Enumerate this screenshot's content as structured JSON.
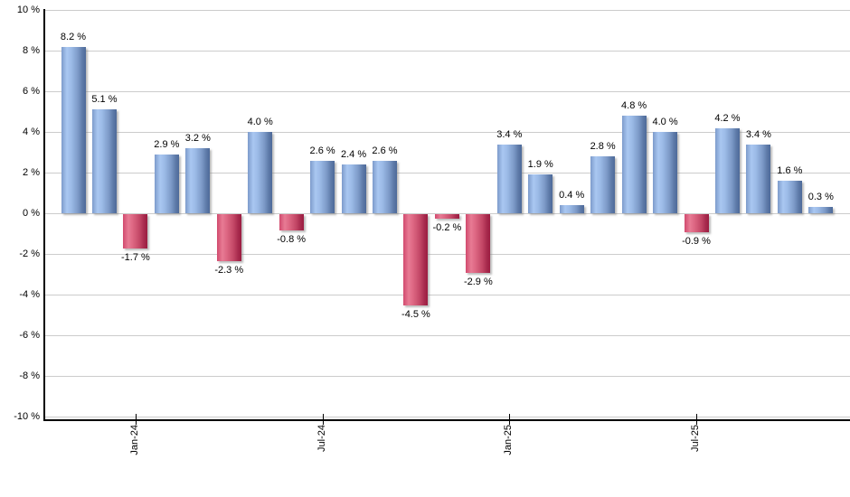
{
  "chart_data": {
    "type": "bar",
    "title": "",
    "unit": "%",
    "values": [
      8.2,
      5.1,
      -1.7,
      2.9,
      3.2,
      -2.3,
      4.0,
      -0.8,
      2.6,
      2.4,
      2.6,
      -4.5,
      -0.2,
      -2.9,
      3.4,
      1.9,
      0.4,
      2.8,
      4.8,
      4.0,
      -0.9,
      4.2,
      3.4,
      1.6,
      0.3
    ],
    "bar_labels": [
      "8.2 %",
      "5.1 %",
      "-1.7 %",
      "2.9 %",
      "3.2 %",
      "-2.3 %",
      "4.0 %",
      "-0.8 %",
      "2.6 %",
      "2.4 %",
      "2.6 %",
      "-4.5 %",
      "-0.2 %",
      "-2.9 %",
      "3.4 %",
      "1.9 %",
      "0.4 %",
      "2.8 %",
      "4.8 %",
      "4.0 %",
      "-0.9 %",
      "4.2 %",
      "3.4 %",
      "1.6 %",
      "0.3 %"
    ],
    "y_ticks": [
      10,
      8,
      6,
      4,
      2,
      0,
      -2,
      -4,
      -6,
      -8,
      -10
    ],
    "y_tick_labels": [
      "10 %",
      "8 %",
      "6 %",
      "4 %",
      "2 %",
      "0 %",
      "-2 %",
      "-4 %",
      "-6 %",
      "-8 %",
      "-10 %"
    ],
    "ylim": [
      -10,
      10
    ],
    "x_tick_labels": [
      {
        "index": 2,
        "label": "Jan-24"
      },
      {
        "index": 8,
        "label": "Jul-24"
      },
      {
        "index": 14,
        "label": "Jan-25"
      },
      {
        "index": 20,
        "label": "Jul-25"
      }
    ],
    "grid": true,
    "legend": null,
    "colors": {
      "positive_light": "#A9C7F1",
      "positive_dark": "#4D6A99",
      "positive_edge": "#7D9BCB",
      "negative_light": "#E87B94",
      "negative_dark": "#9B1C40",
      "negative_edge": "#D14A6E",
      "gridline": "#CCCCCC",
      "axis": "#000000",
      "background": "#FFFFFF",
      "label_text": "#000000"
    }
  }
}
